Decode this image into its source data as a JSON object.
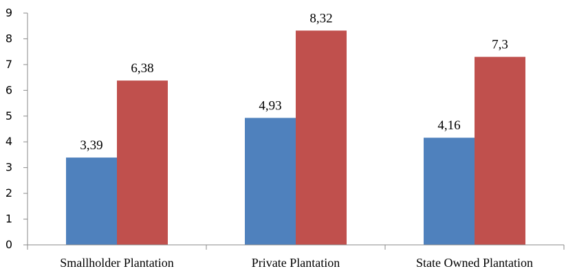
{
  "chart_data": {
    "type": "bar",
    "categories": [
      "Smallholder Plantation",
      "Private Plantation",
      "State Owned Plantation"
    ],
    "series": [
      {
        "values": [
          3.39,
          4.93,
          4.16
        ],
        "labels": [
          "3,39",
          "4,93",
          "4,16"
        ],
        "color": "#4f81bd"
      },
      {
        "values": [
          6.38,
          8.32,
          7.3
        ],
        "labels": [
          "6,38",
          "8,32",
          "7,3"
        ],
        "color": "#c0504d"
      }
    ],
    "ylim": [
      0,
      9
    ],
    "yticks": [
      "0",
      "1",
      "2",
      "3",
      "4",
      "5",
      "6",
      "7",
      "8",
      "9"
    ],
    "grid": false,
    "legend": "none"
  }
}
